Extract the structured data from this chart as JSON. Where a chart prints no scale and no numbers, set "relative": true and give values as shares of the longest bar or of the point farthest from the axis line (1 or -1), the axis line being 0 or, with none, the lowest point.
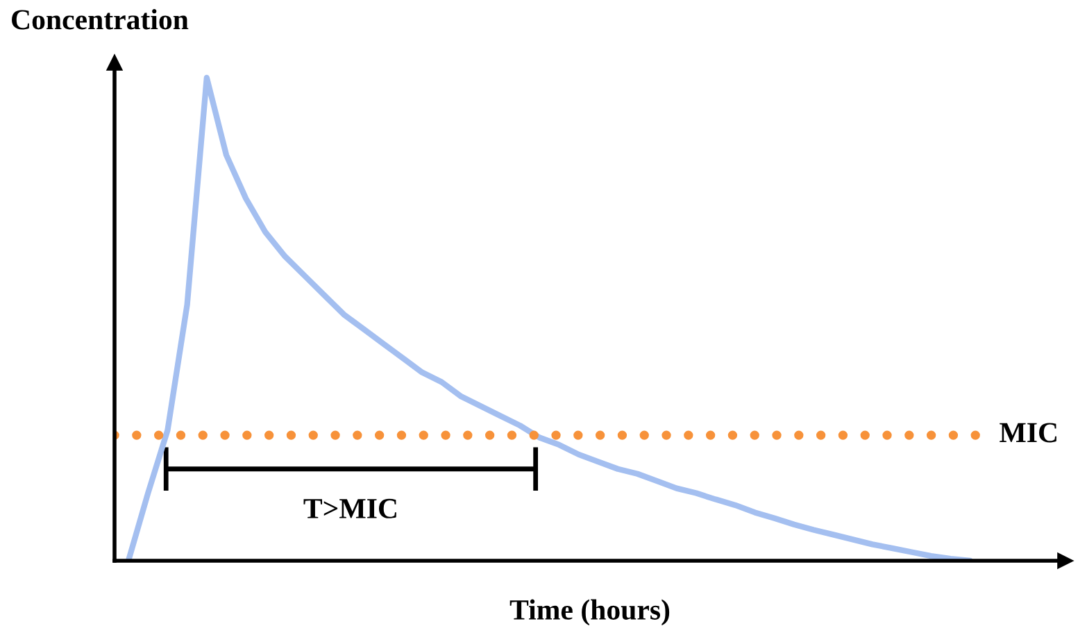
{
  "chart_data": {
    "type": "line",
    "relative": true,
    "xlabel": "Time (hours)",
    "ylabel": "Concentration",
    "categories": [
      null,
      null,
      null,
      null,
      null,
      null,
      null,
      null,
      null,
      null,
      null,
      null,
      null,
      null,
      null,
      null,
      null,
      null,
      null,
      null,
      null,
      null,
      null,
      null,
      null,
      null,
      null,
      null,
      null,
      null,
      null,
      null,
      null,
      null,
      null,
      null,
      null,
      null,
      null,
      null,
      null,
      null,
      null,
      null
    ],
    "series": [
      {
        "color": "#a4bff0",
        "values": [
          0,
          0.14,
          0.27,
          0.53,
          1,
          0.84,
          0.75,
          0.68,
          0.63,
          0.59,
          0.55,
          0.51,
          0.48,
          0.45,
          0.42,
          0.39,
          0.37,
          0.34,
          0.32,
          0.3,
          0.28,
          0.255,
          0.24,
          0.22,
          0.205,
          0.19,
          0.18,
          0.165,
          0.15,
          0.14,
          0.127,
          0.115,
          0.1,
          0.088,
          0.075,
          0.064,
          0.054,
          0.044,
          0.034,
          0.026,
          0.018,
          0.01,
          0.004,
          0
        ]
      }
    ],
    "ref_lines": [
      {
        "axis": "y",
        "value": 0.26,
        "label": "MIC",
        "color": "#f7923a",
        "line_style": "dotted"
      }
    ],
    "annotations": [
      "T>MIC"
    ],
    "grid": false,
    "marker": "none",
    "line_style": "solid",
    "tick_labels": false
  }
}
